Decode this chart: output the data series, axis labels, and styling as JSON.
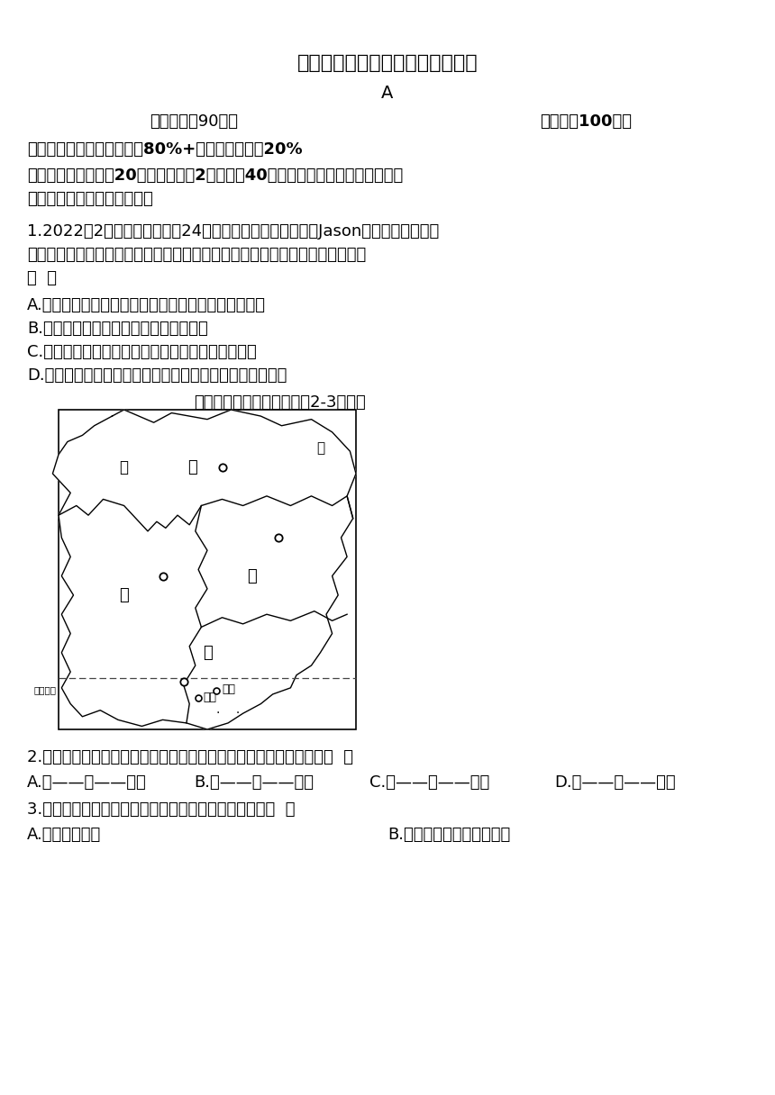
{
  "title": "湘教版八年级下学期地理开学测试",
  "subtitle": "A",
  "exam_time_label": "考试时间：90分钟",
  "full_score_label": "【满分：100分】",
  "scope_line": "考试范围：八年级上册知识80%+八年级下册知识20%",
  "section1": "一、选择题：本体共20小题，每小题2分，共计40分。在每小题给出的四个选项中",
  "section1b": "只有一项是符合题目要求的。",
  "q1": "1.2022年2月将在北京举办第24届冬奥会，生活在加拿大的Jason为此也做着准备，",
  "q1b": "他上网搜集关于中国的资料并做了笔记，以下是他对中国的描述，其中正确的是",
  "q1c": "（  ）",
  "q1A": "A.疆域辽阔，北回归线穿过领土南部，北极圈穿过北部",
  "q1B": "B.邻国众多，南与缅甸、老挝和越南为邻",
  "q1C": "C.少数民族集中分布在东北、东南和西北等边远地区",
  "q1D": "D.人口分布大致以漠河一腾冲一线为界，呈东少西多的态势",
  "map_caption": "读我国某区域示意图，完成2-3小题。",
  "q2": "2.甲、乙、丙、丁所在的省区与其简称及行政中心的连线，正确的是（  ）",
  "q2A": "A.甲——鄂——长沙",
  "q2B": "B.乙——湘——湘潭",
  "q2C": "C.丙——赣——南昌",
  "q2D": "D.丁——桂——广州",
  "q3": "3.丁省的珠江三角洲地区发展外向型经济的优势条件是（  ）",
  "q3A": "A.矿产资源丰富",
  "q3B": "B.京广、陇海铁路直通本区",
  "bg_color": "#ffffff",
  "text_color": "#000000",
  "map_border_color": "#000000",
  "dashed_line_color": "#555555"
}
